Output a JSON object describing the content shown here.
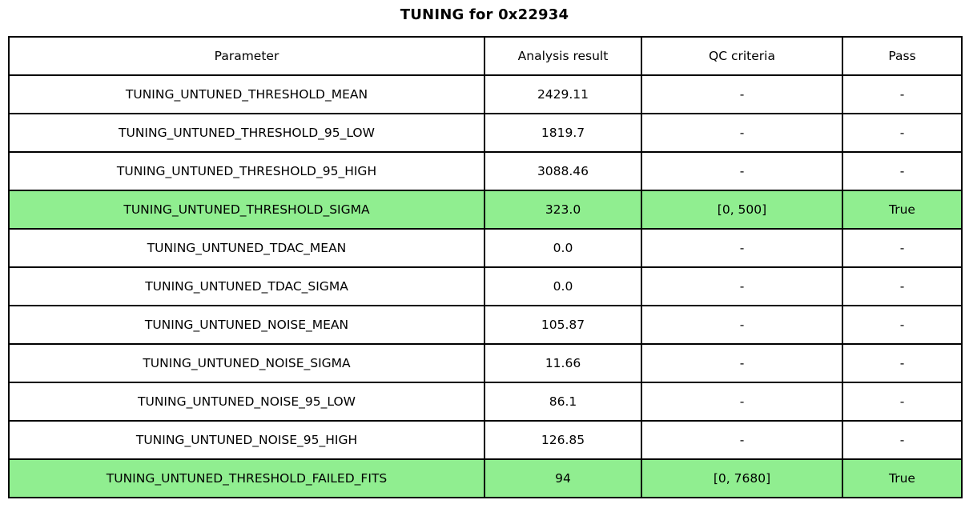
{
  "title": "TUNING for 0x22934",
  "colors": {
    "highlight_green": "#90EE90",
    "border": "#000000",
    "background": "#FFFFFF",
    "text": "#000000"
  },
  "table": {
    "columns": [
      "Parameter",
      "Analysis result",
      "QC criteria",
      "Pass"
    ],
    "rows": [
      {
        "parameter": "TUNING_UNTUNED_THRESHOLD_MEAN",
        "result": "2429.11",
        "qc": "-",
        "pass": "-",
        "highlight": false
      },
      {
        "parameter": "TUNING_UNTUNED_THRESHOLD_95_LOW",
        "result": "1819.7",
        "qc": "-",
        "pass": "-",
        "highlight": false
      },
      {
        "parameter": "TUNING_UNTUNED_THRESHOLD_95_HIGH",
        "result": "3088.46",
        "qc": "-",
        "pass": "-",
        "highlight": false
      },
      {
        "parameter": "TUNING_UNTUNED_THRESHOLD_SIGMA",
        "result": "323.0",
        "qc": "[0, 500]",
        "pass": "True",
        "highlight": true
      },
      {
        "parameter": "TUNING_UNTUNED_TDAC_MEAN",
        "result": "0.0",
        "qc": "-",
        "pass": "-",
        "highlight": false
      },
      {
        "parameter": "TUNING_UNTUNED_TDAC_SIGMA",
        "result": "0.0",
        "qc": "-",
        "pass": "-",
        "highlight": false
      },
      {
        "parameter": "TUNING_UNTUNED_NOISE_MEAN",
        "result": "105.87",
        "qc": "-",
        "pass": "-",
        "highlight": false
      },
      {
        "parameter": "TUNING_UNTUNED_NOISE_SIGMA",
        "result": "11.66",
        "qc": "-",
        "pass": "-",
        "highlight": false
      },
      {
        "parameter": "TUNING_UNTUNED_NOISE_95_LOW",
        "result": "86.1",
        "qc": "-",
        "pass": "-",
        "highlight": false
      },
      {
        "parameter": "TUNING_UNTUNED_NOISE_95_HIGH",
        "result": "126.85",
        "qc": "-",
        "pass": "-",
        "highlight": false
      },
      {
        "parameter": "TUNING_UNTUNED_THRESHOLD_FAILED_FITS",
        "result": "94",
        "qc": "[0, 7680]",
        "pass": "True",
        "highlight": true
      }
    ]
  },
  "chart_data": {
    "type": "table",
    "title": "TUNING for 0x22934",
    "columns": [
      "Parameter",
      "Analysis result",
      "QC criteria",
      "Pass"
    ],
    "rows": [
      [
        "TUNING_UNTUNED_THRESHOLD_MEAN",
        "2429.11",
        "-",
        "-"
      ],
      [
        "TUNING_UNTUNED_THRESHOLD_95_LOW",
        "1819.7",
        "-",
        "-"
      ],
      [
        "TUNING_UNTUNED_THRESHOLD_95_HIGH",
        "3088.46",
        "-",
        "-"
      ],
      [
        "TUNING_UNTUNED_THRESHOLD_SIGMA",
        "323.0",
        "[0, 500]",
        "True"
      ],
      [
        "TUNING_UNTUNED_TDAC_MEAN",
        "0.0",
        "-",
        "-"
      ],
      [
        "TUNING_UNTUNED_TDAC_SIGMA",
        "0.0",
        "-",
        "-"
      ],
      [
        "TUNING_UNTUNED_NOISE_MEAN",
        "105.87",
        "-",
        "-"
      ],
      [
        "TUNING_UNTUNED_NOISE_SIGMA",
        "11.66",
        "-",
        "-"
      ],
      [
        "TUNING_UNTUNED_NOISE_95_LOW",
        "86.1",
        "-",
        "-"
      ],
      [
        "TUNING_UNTUNED_NOISE_95_HIGH",
        "126.85",
        "-",
        "-"
      ],
      [
        "TUNING_UNTUNED_THRESHOLD_FAILED_FITS",
        "94",
        "[0, 7680]",
        "True"
      ]
    ],
    "highlighted_row_indices": [
      3,
      10
    ],
    "highlight_color": "#90EE90"
  }
}
